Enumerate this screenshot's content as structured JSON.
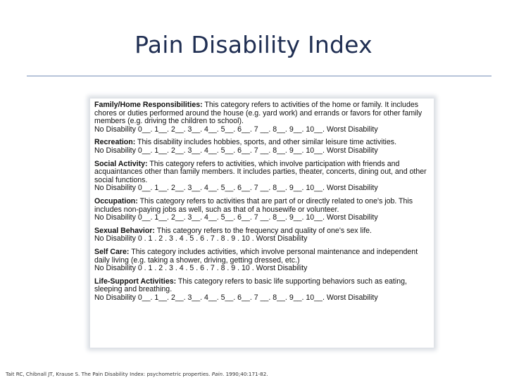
{
  "slide": {
    "title": "Pain Disability Index"
  },
  "categories": [
    {
      "title": "Family/Home Responsibilities:",
      "text": " This category refers to activities of the home or family. It includes chores or duties performed around the house (e.g. yard work) and errands or favors for other family members (e.g. driving the children to school).",
      "scale": "No Disability 0__. 1__. 2__. 3__. 4__. 5__. 6__. 7 __. 8__. 9__. 10__. Worst Disability"
    },
    {
      "title": "Recreation:",
      "text": " This disability includes hobbies, sports, and other similar leisure time activities.",
      "scale": "No Disability 0__. 1__. 2__. 3__. 4__. 5__. 6__. 7 __. 8__. 9__. 10__. Worst Disability"
    },
    {
      "title": "Social Activity:",
      "text": " This category refers to activities, which involve participation with friends and acquaintances other than family members. It includes parties, theater, concerts, dining out, and other social functions.",
      "scale": "No Disability 0__. 1__. 2__. 3__. 4__. 5__. 6__. 7 __. 8__. 9__. 10__. Worst Disability"
    },
    {
      "title": "Occupation:",
      "text": " This category refers to activities that are part of or directly related to one's job. This includes non-paying jobs as well, such as that of a housewife or volunteer.",
      "scale": "No Disability 0__. 1__. 2__. 3__. 4__. 5__. 6__. 7 __. 8__. 9__. 10__. Worst Disability"
    },
    {
      "title": "Sexual Behavior:",
      "text": " This category refers to the frequency and quality of one's sex life.",
      "scale": "No Disability 0 . 1 . 2 . 3 . 4 . 5 . 6 . 7 . 8 . 9 . 10 . Worst Disability"
    },
    {
      "title": "Self Care:",
      "text": " This category includes activities, which involve personal maintenance and independent daily living (e.g. taking a shower, driving, getting dressed, etc.)",
      "scale": "No Disability 0 . 1 . 2 . 3 . 4 . 5 . 6 . 7 . 8 . 9 . 10 . Worst Disability"
    },
    {
      "title": "Life-Support Activities:",
      "text": " This category refers to basic life supporting behaviors such as eating, sleeping and breathing.",
      "scale": "No Disability 0__. 1__. 2__. 3__. 4__. 5__. 6__. 7 __. 8__. 9__. 10__. Worst Disability"
    }
  ],
  "citation": {
    "pre": "Tait RC, Chibnall JT, Krause S. The Pain Disability Index: psychometric properties. ",
    "journal": "Pain",
    "post": ". 1990;40:171-82."
  }
}
